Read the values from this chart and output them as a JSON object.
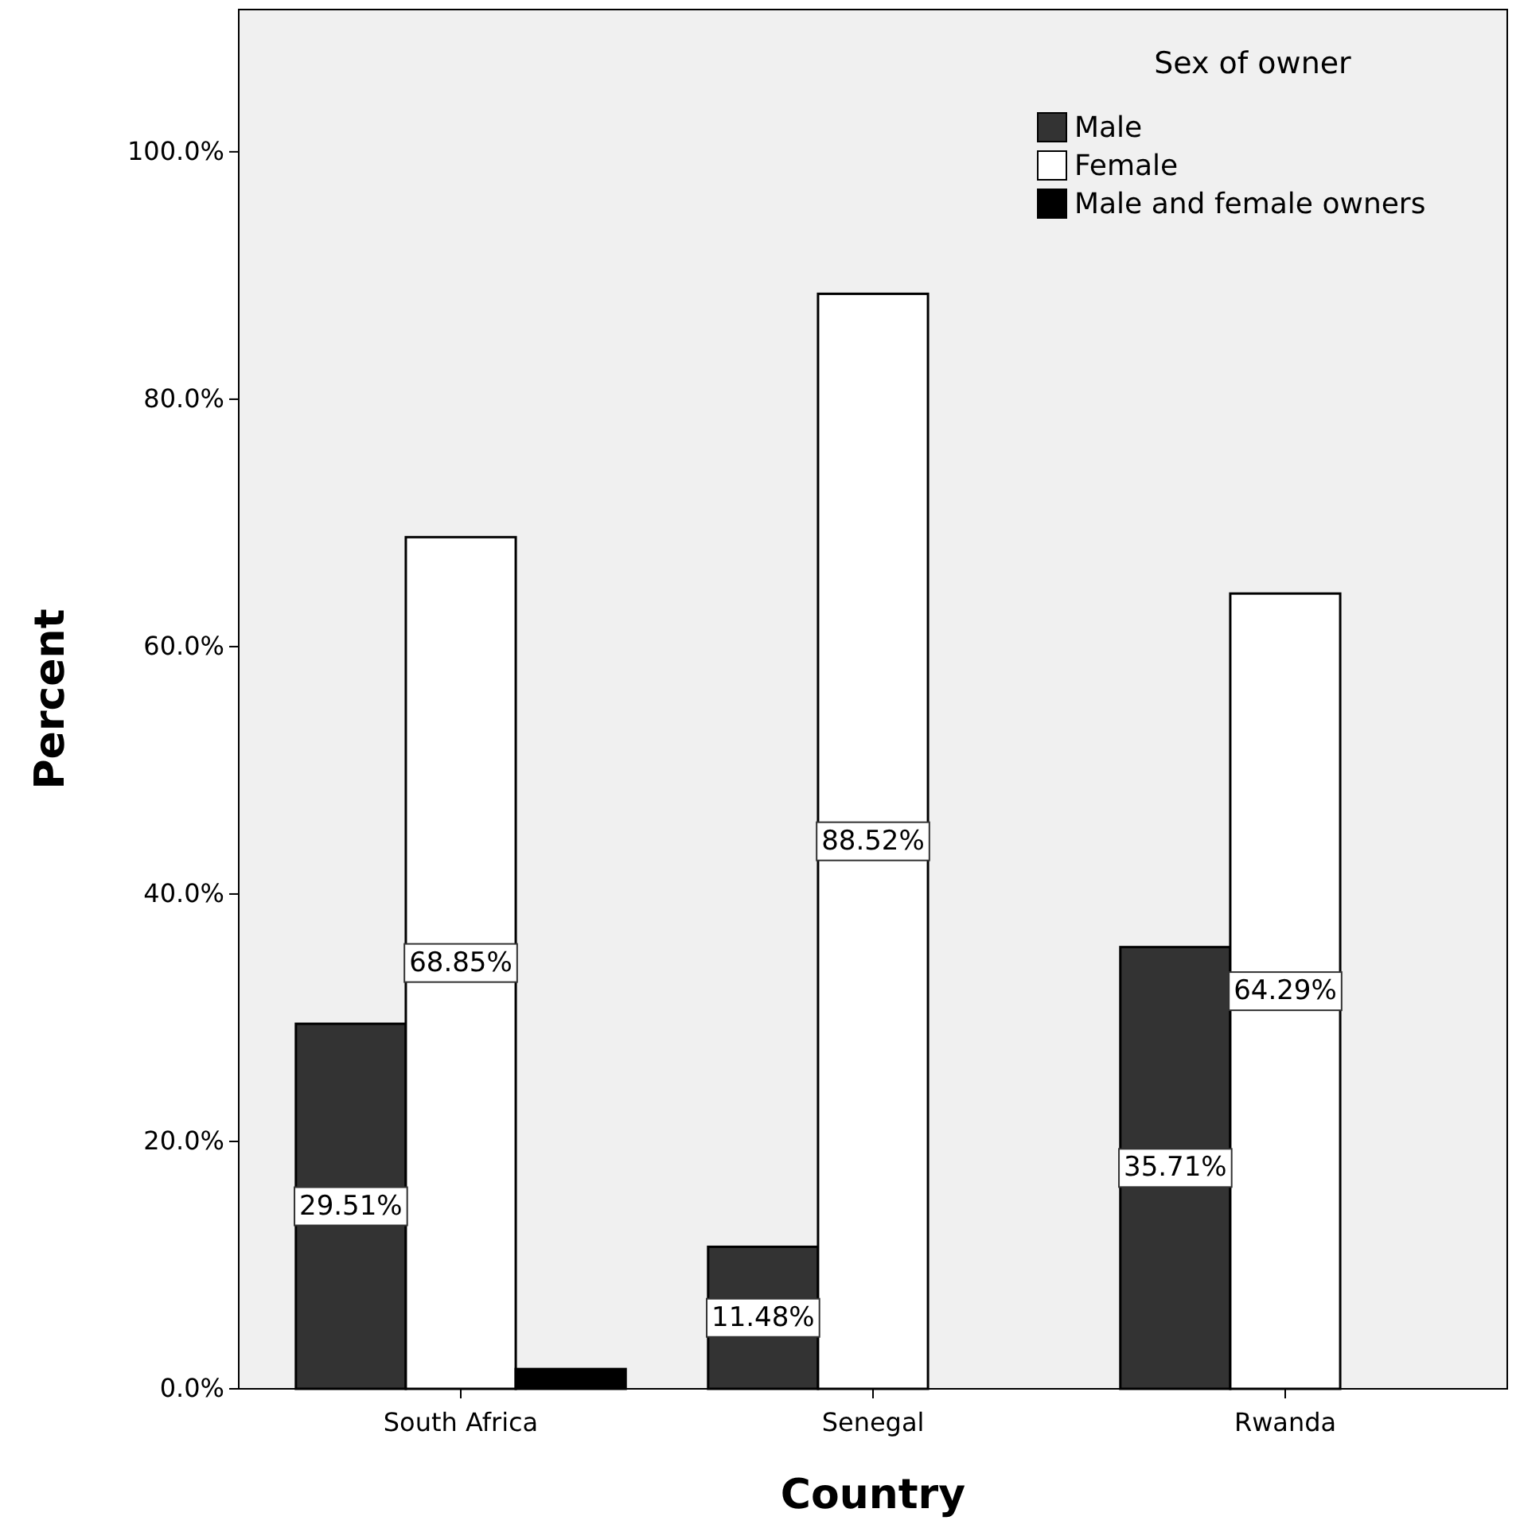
{
  "chart_data": {
    "type": "bar",
    "xlabel": "Country",
    "ylabel": "Percent",
    "legend_title": "Sex of owner",
    "legend": "top right",
    "categories": [
      "South Africa",
      "Senegal",
      "Rwanda"
    ],
    "series": [
      {
        "name": "Male",
        "color": "#333333",
        "values": [
          29.51,
          11.48,
          35.71
        ],
        "value_labels": [
          "29.51%",
          "11.48%",
          "35.71%"
        ]
      },
      {
        "name": "Female",
        "color": "#ffffff",
        "values": [
          68.85,
          88.52,
          64.29
        ],
        "value_labels": [
          "68.85%",
          "88.52%",
          "64.29%"
        ]
      },
      {
        "name": "Male and female owners",
        "color": "#000000",
        "values": [
          1.6,
          0,
          0
        ]
      }
    ],
    "ylim": [
      0,
      111.5
    ],
    "yticks": [
      {
        "value": 0,
        "label": "0.0%"
      },
      {
        "value": 20,
        "label": "20.0%"
      },
      {
        "value": 40,
        "label": "40.0%"
      },
      {
        "value": 60,
        "label": "60.0%"
      },
      {
        "value": 80,
        "label": "80.0%"
      },
      {
        "value": 100,
        "label": "100.0%"
      }
    ]
  }
}
